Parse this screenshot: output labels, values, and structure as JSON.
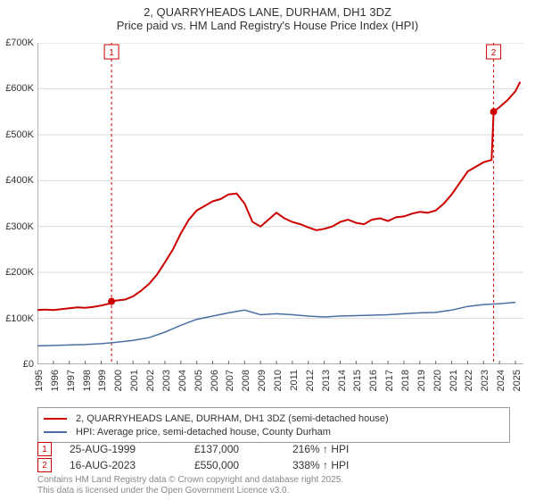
{
  "title": {
    "line1": "2, QUARRYHEADS LANE, DURHAM, DH1 3DZ",
    "line2": "Price paid vs. HM Land Registry's House Price Index (HPI)"
  },
  "chart": {
    "type": "line",
    "background_color": "#ffffff",
    "grid_color": "#d9d9d9",
    "axis_color": "#666666",
    "ylabel_fontsize": 11,
    "xlabel_fontsize": 11,
    "xlim": [
      1995,
      2025.5
    ],
    "ylim": [
      0,
      700000
    ],
    "yticks": [
      0,
      100000,
      200000,
      300000,
      400000,
      500000,
      600000,
      700000
    ],
    "ytick_labels": [
      "£0",
      "£100K",
      "£200K",
      "£300K",
      "£400K",
      "£500K",
      "£600K",
      "£700K"
    ],
    "xticks": [
      1995,
      1996,
      1997,
      1998,
      1999,
      2000,
      2001,
      2002,
      2003,
      2004,
      2005,
      2006,
      2007,
      2008,
      2009,
      2010,
      2011,
      2012,
      2013,
      2014,
      2015,
      2016,
      2017,
      2018,
      2019,
      2020,
      2021,
      2022,
      2023,
      2024,
      2025
    ],
    "xtick_labels": [
      "1995",
      "1996",
      "1997",
      "1998",
      "1999",
      "2000",
      "2001",
      "2002",
      "2003",
      "2004",
      "2005",
      "2006",
      "2007",
      "2008",
      "2009",
      "2010",
      "2011",
      "2012",
      "2013",
      "2014",
      "2015",
      "2016",
      "2017",
      "2018",
      "2019",
      "2020",
      "2021",
      "2022",
      "2023",
      "2024",
      "2025"
    ],
    "series": [
      {
        "name": "price_paid",
        "label": "2, QUARRYHEADS LANE, DURHAM, DH1 3DZ (semi-detached house)",
        "color": "#cc0000",
        "line_width": 2,
        "x": [
          1995,
          1995.5,
          1996,
          1996.5,
          1997,
          1997.5,
          1998,
          1998.5,
          1999,
          1999.5,
          1999.65,
          2000,
          2000.5,
          2001,
          2001.5,
          2002,
          2002.5,
          2003,
          2003.5,
          2004,
          2004.5,
          2005,
          2005.5,
          2006,
          2006.5,
          2007,
          2007.5,
          2008,
          2008.5,
          2009,
          2009.5,
          2010,
          2010.5,
          2011,
          2011.5,
          2012,
          2012.5,
          2013,
          2013.5,
          2014,
          2014.5,
          2015,
          2015.5,
          2016,
          2016.5,
          2017,
          2017.5,
          2018,
          2018.5,
          2019,
          2019.5,
          2020,
          2020.5,
          2021,
          2021.5,
          2022,
          2022.5,
          2023,
          2023.5,
          2023.63,
          2024,
          2024.5,
          2025,
          2025.3
        ],
        "y": [
          118000,
          119000,
          118000,
          120000,
          122000,
          124000,
          123000,
          125000,
          128000,
          132000,
          137000,
          139000,
          141000,
          148000,
          160000,
          175000,
          195000,
          222000,
          250000,
          285000,
          315000,
          335000,
          345000,
          355000,
          360000,
          370000,
          372000,
          350000,
          310000,
          300000,
          315000,
          330000,
          318000,
          310000,
          305000,
          298000,
          292000,
          295000,
          300000,
          310000,
          315000,
          308000,
          305000,
          315000,
          318000,
          312000,
          320000,
          322000,
          328000,
          332000,
          330000,
          335000,
          350000,
          370000,
          395000,
          420000,
          430000,
          440000,
          445000,
          550000,
          560000,
          575000,
          595000,
          615000
        ]
      },
      {
        "name": "hpi",
        "label": "HPI: Average price, semi-detached house, County Durham",
        "color": "#4a6fa5",
        "line_width": 1.5,
        "x": [
          1995,
          1996,
          1997,
          1998,
          1999,
          2000,
          2001,
          2002,
          2003,
          2004,
          2005,
          2006,
          2007,
          2008,
          2009,
          2010,
          2011,
          2012,
          2013,
          2014,
          2015,
          2016,
          2017,
          2018,
          2019,
          2020,
          2021,
          2022,
          2023,
          2024,
          2025
        ],
        "y": [
          40000,
          41000,
          42000,
          43000,
          45000,
          48000,
          52000,
          58000,
          70000,
          85000,
          98000,
          105000,
          112000,
          118000,
          108000,
          110000,
          108000,
          105000,
          103000,
          105000,
          106000,
          107000,
          108000,
          110000,
          112000,
          113000,
          118000,
          126000,
          130000,
          132000,
          135000
        ]
      }
    ],
    "markers": [
      {
        "index": "1",
        "x": 1999.65,
        "y": 137000,
        "color": "#cc0000",
        "vline_color": "#cc0000",
        "vline_dash": "3,3",
        "label_top_y_offset": -8
      },
      {
        "index": "2",
        "x": 2023.63,
        "y": 550000,
        "color": "#cc0000",
        "vline_color": "#cc0000",
        "vline_dash": "3,3",
        "label_top_y_offset": -8
      }
    ]
  },
  "legend": {
    "border_color": "#999999",
    "fontsize": 11,
    "items": [
      {
        "color": "#cc0000",
        "label": "2, QUARRYHEADS LANE, DURHAM, DH1 3DZ (semi-detached house)"
      },
      {
        "color": "#4a6fa5",
        "label": "HPI: Average price, semi-detached house, County Durham"
      }
    ]
  },
  "marker_table": {
    "rows": [
      {
        "index": "1",
        "date": "25-AUG-1999",
        "price": "£137,000",
        "pct": "216% ↑ HPI"
      },
      {
        "index": "2",
        "date": "16-AUG-2023",
        "price": "£550,000",
        "pct": "338% ↑ HPI"
      }
    ]
  },
  "footer": {
    "line1": "Contains HM Land Registry data © Crown copyright and database right 2025.",
    "line2": "This data is licensed under the Open Government Licence v3.0."
  }
}
